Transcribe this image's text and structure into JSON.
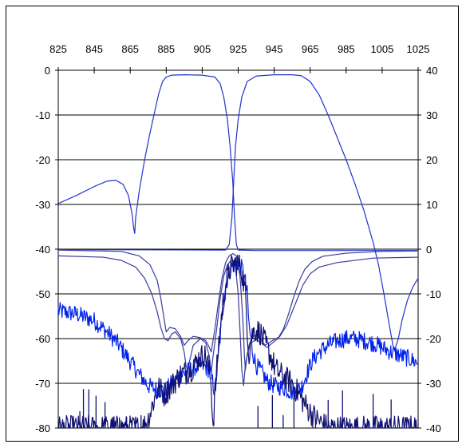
{
  "chart_data": {
    "type": "line",
    "title": "",
    "xlabel": "",
    "ylabel": "",
    "y2label": "",
    "x_axis_position": "top",
    "xlim": [
      825,
      1025
    ],
    "x_ticks": [
      825,
      845,
      865,
      885,
      905,
      925,
      945,
      965,
      985,
      1005,
      1025
    ],
    "ylim_left": [
      -80,
      0
    ],
    "y_left_ticks": [
      0,
      -10,
      -20,
      -30,
      -40,
      -50,
      -60,
      -70,
      -80
    ],
    "ylim_right": [
      -40,
      40
    ],
    "y_right_ticks": [
      40,
      30,
      20,
      10,
      0,
      -10,
      -20,
      -30,
      -40
    ],
    "grid": "horizontal",
    "legend": "none",
    "colors": {
      "series_a": "#2233cc",
      "series_b": "#3a3aa0",
      "series_c": "#0022ee",
      "series_d": "#101070",
      "grid": "#000000"
    },
    "series": [
      {
        "axis": "left",
        "color": "#2233cc",
        "noise": 0,
        "points": [
          [
            825,
            -29.8
          ],
          [
            835,
            -28
          ],
          [
            845,
            -26
          ],
          [
            852,
            -24.8
          ],
          [
            857,
            -24.6
          ],
          [
            861,
            -25.5
          ],
          [
            864,
            -28
          ],
          [
            866,
            -32
          ],
          [
            867,
            -35.5
          ],
          [
            867.5,
            -36.5
          ],
          [
            868,
            -33
          ],
          [
            870,
            -27
          ],
          [
            873,
            -20
          ],
          [
            876,
            -14
          ],
          [
            879,
            -8.5
          ],
          [
            881,
            -5
          ],
          [
            883,
            -2.5
          ],
          [
            885,
            -1.5
          ],
          [
            888,
            -1.1
          ],
          [
            895,
            -1.0
          ],
          [
            905,
            -1.1
          ],
          [
            912,
            -1.5
          ],
          [
            915,
            -3
          ],
          [
            917,
            -6
          ],
          [
            919,
            -11
          ],
          [
            920.5,
            -17
          ],
          [
            922,
            -25
          ],
          [
            923,
            -33
          ],
          [
            924,
            -39
          ],
          [
            925,
            -40.2
          ],
          [
            935,
            -40.3
          ],
          [
            1025,
            -40.3
          ]
        ]
      },
      {
        "axis": "left",
        "color": "#2233cc",
        "noise": 0,
        "points": [
          [
            825,
            -40.1
          ],
          [
            918,
            -40.2
          ],
          [
            920,
            -39
          ],
          [
            921.5,
            -33
          ],
          [
            922.5,
            -25
          ],
          [
            923.5,
            -17
          ],
          [
            925,
            -11
          ],
          [
            927,
            -6
          ],
          [
            930,
            -2.5
          ],
          [
            935,
            -1.3
          ],
          [
            945,
            -1.0
          ],
          [
            955,
            -1.0
          ],
          [
            960,
            -1.2
          ],
          [
            965,
            -2.5
          ],
          [
            970,
            -5.5
          ],
          [
            975,
            -10
          ],
          [
            980,
            -15
          ],
          [
            985,
            -20
          ],
          [
            990,
            -25.5
          ],
          [
            995,
            -31.5
          ],
          [
            1000,
            -38.5
          ],
          [
            1003,
            -43.5
          ],
          [
            1006,
            -50
          ],
          [
            1009,
            -57
          ],
          [
            1011,
            -61.5
          ],
          [
            1012,
            -62.5
          ],
          [
            1014,
            -60
          ],
          [
            1016,
            -56
          ],
          [
            1019,
            -51.5
          ],
          [
            1022,
            -48.5
          ],
          [
            1025,
            -46.5
          ]
        ]
      },
      {
        "axis": "left",
        "color": "#3a3aa0",
        "noise": 0,
        "points": [
          [
            825,
            -41.5
          ],
          [
            850,
            -41.8
          ],
          [
            860,
            -42.5
          ],
          [
            868,
            -44
          ],
          [
            873,
            -46.5
          ],
          [
            877,
            -50
          ],
          [
            880,
            -54
          ],
          [
            882,
            -57.5
          ],
          [
            884,
            -60
          ],
          [
            886,
            -60.5
          ],
          [
            888,
            -59
          ],
          [
            890,
            -58.5
          ],
          [
            893,
            -60
          ],
          [
            895,
            -63
          ],
          [
            896,
            -66
          ],
          [
            897,
            -67.5
          ],
          [
            898,
            -65
          ],
          [
            900,
            -61.5
          ],
          [
            904,
            -60
          ],
          [
            907,
            -61
          ],
          [
            909,
            -64
          ],
          [
            910,
            -67.5
          ],
          [
            911,
            -64
          ],
          [
            913,
            -58
          ],
          [
            915,
            -51
          ],
          [
            917,
            -46
          ],
          [
            919,
            -43.5
          ],
          [
            921,
            -42.5
          ],
          [
            922,
            -42.5
          ],
          [
            923.5,
            -44
          ],
          [
            925,
            -50
          ],
          [
            926,
            -58
          ],
          [
            927,
            -67
          ],
          [
            928,
            -70.5
          ],
          [
            929,
            -66
          ],
          [
            931,
            -61.5
          ],
          [
            933,
            -59.5
          ],
          [
            936,
            -59.2
          ],
          [
            938,
            -60.5
          ],
          [
            940,
            -61.5
          ],
          [
            942,
            -61
          ],
          [
            945,
            -60.2
          ],
          [
            948,
            -59.6
          ],
          [
            952,
            -57
          ],
          [
            955,
            -54
          ],
          [
            958,
            -51
          ],
          [
            961,
            -48
          ],
          [
            965,
            -45.5
          ],
          [
            970,
            -44
          ],
          [
            980,
            -43
          ],
          [
            1000,
            -42
          ],
          [
            1025,
            -41.8
          ]
        ]
      },
      {
        "axis": "left",
        "color": "#3a3aa0",
        "noise": 0,
        "points": [
          [
            825,
            -40.2
          ],
          [
            860,
            -40.5
          ],
          [
            870,
            -41.5
          ],
          [
            876,
            -43.5
          ],
          [
            880,
            -47
          ],
          [
            882,
            -51
          ],
          [
            884,
            -56
          ],
          [
            885,
            -58.5
          ],
          [
            887,
            -57.5
          ],
          [
            890,
            -57.8
          ],
          [
            893,
            -59.5
          ],
          [
            895,
            -61.5
          ],
          [
            897,
            -60.5
          ],
          [
            900,
            -59.5
          ],
          [
            904,
            -59.8
          ],
          [
            907,
            -60.5
          ],
          [
            909,
            -62
          ],
          [
            910,
            -63
          ],
          [
            912,
            -58
          ],
          [
            914,
            -52
          ],
          [
            916,
            -46.5
          ],
          [
            918,
            -43
          ],
          [
            920,
            -41.5
          ],
          [
            922,
            -41
          ],
          [
            924,
            -41.5
          ],
          [
            926,
            -46
          ],
          [
            927.5,
            -55
          ],
          [
            928.5,
            -64
          ],
          [
            929,
            -67
          ],
          [
            930,
            -63.5
          ],
          [
            932,
            -61
          ],
          [
            935,
            -60.2
          ],
          [
            938,
            -61
          ],
          [
            941,
            -62
          ],
          [
            944,
            -61
          ],
          [
            947,
            -60
          ],
          [
            950,
            -58
          ],
          [
            953,
            -54.5
          ],
          [
            956,
            -50.5
          ],
          [
            959,
            -47
          ],
          [
            962,
            -44.5
          ],
          [
            966,
            -42.8
          ],
          [
            972,
            -41.6
          ],
          [
            985,
            -40.9
          ],
          [
            1005,
            -40.5
          ],
          [
            1025,
            -40.4
          ]
        ]
      },
      {
        "axis": "left",
        "color": "#0022ee",
        "noise": 0.9,
        "points": [
          [
            825,
            -53.8
          ],
          [
            835,
            -54.5
          ],
          [
            845,
            -56
          ],
          [
            852,
            -58.5
          ],
          [
            858,
            -61
          ],
          [
            864,
            -64.5
          ],
          [
            870,
            -68
          ],
          [
            875,
            -70.5
          ],
          [
            880,
            -71.5
          ],
          [
            885,
            -71.5
          ],
          [
            888,
            -70
          ],
          [
            892,
            -68.5
          ],
          [
            896,
            -67.5
          ],
          [
            900,
            -66.5
          ],
          [
            905,
            -66
          ],
          [
            909,
            -67
          ],
          [
            911,
            -70
          ],
          [
            912,
            -72
          ],
          [
            914,
            -64
          ],
          [
            916,
            -55
          ],
          [
            918,
            -48
          ],
          [
            921,
            -44
          ],
          [
            925,
            -43
          ],
          [
            928,
            -45
          ],
          [
            930,
            -50
          ],
          [
            931,
            -57
          ],
          [
            933,
            -63
          ],
          [
            935,
            -66
          ],
          [
            938,
            -67.5
          ],
          [
            941,
            -69.5
          ],
          [
            945,
            -70.5
          ],
          [
            950,
            -71
          ],
          [
            955,
            -72
          ],
          [
            960,
            -71
          ],
          [
            963,
            -68
          ],
          [
            966,
            -65
          ],
          [
            970,
            -63
          ],
          [
            975,
            -61.5
          ],
          [
            980,
            -60.5
          ],
          [
            985,
            -60
          ],
          [
            990,
            -60
          ],
          [
            995,
            -60.5
          ],
          [
            1000,
            -61
          ],
          [
            1005,
            -62
          ],
          [
            1010,
            -63
          ],
          [
            1015,
            -63.8
          ],
          [
            1020,
            -64.5
          ],
          [
            1025,
            -65.5
          ]
        ]
      },
      {
        "axis": "left",
        "color": "#101070",
        "noise": 1.3,
        "points": [
          [
            825,
            -80
          ],
          [
            872,
            -80
          ],
          [
            875,
            -78
          ],
          [
            878,
            -74
          ],
          [
            881,
            -71
          ],
          [
            884,
            -72.5
          ],
          [
            887,
            -71
          ],
          [
            890,
            -69.5
          ],
          [
            893,
            -68
          ],
          [
            896,
            -67.5
          ],
          [
            900,
            -66.5
          ],
          [
            903,
            -64.5
          ],
          [
            906,
            -63.5
          ],
          [
            908,
            -65
          ],
          [
            910,
            -70
          ],
          [
            911,
            -80
          ],
          [
            912,
            -73
          ],
          [
            914,
            -62
          ],
          [
            916,
            -54
          ],
          [
            918,
            -48
          ],
          [
            920,
            -45
          ],
          [
            922,
            -43.5
          ],
          [
            925,
            -43
          ],
          [
            927,
            -45
          ],
          [
            929,
            -50
          ],
          [
            930,
            -57
          ],
          [
            931,
            -64
          ],
          [
            932,
            -60
          ],
          [
            934,
            -58
          ],
          [
            937,
            -58.5
          ],
          [
            940,
            -61
          ],
          [
            943,
            -64
          ],
          [
            946,
            -67
          ],
          [
            950,
            -68.5
          ],
          [
            955,
            -70
          ],
          [
            958,
            -72
          ],
          [
            961,
            -74
          ],
          [
            965,
            -76.5
          ],
          [
            970,
            -78.5
          ],
          [
            975,
            -80
          ],
          [
            1025,
            -80
          ]
        ]
      }
    ]
  }
}
